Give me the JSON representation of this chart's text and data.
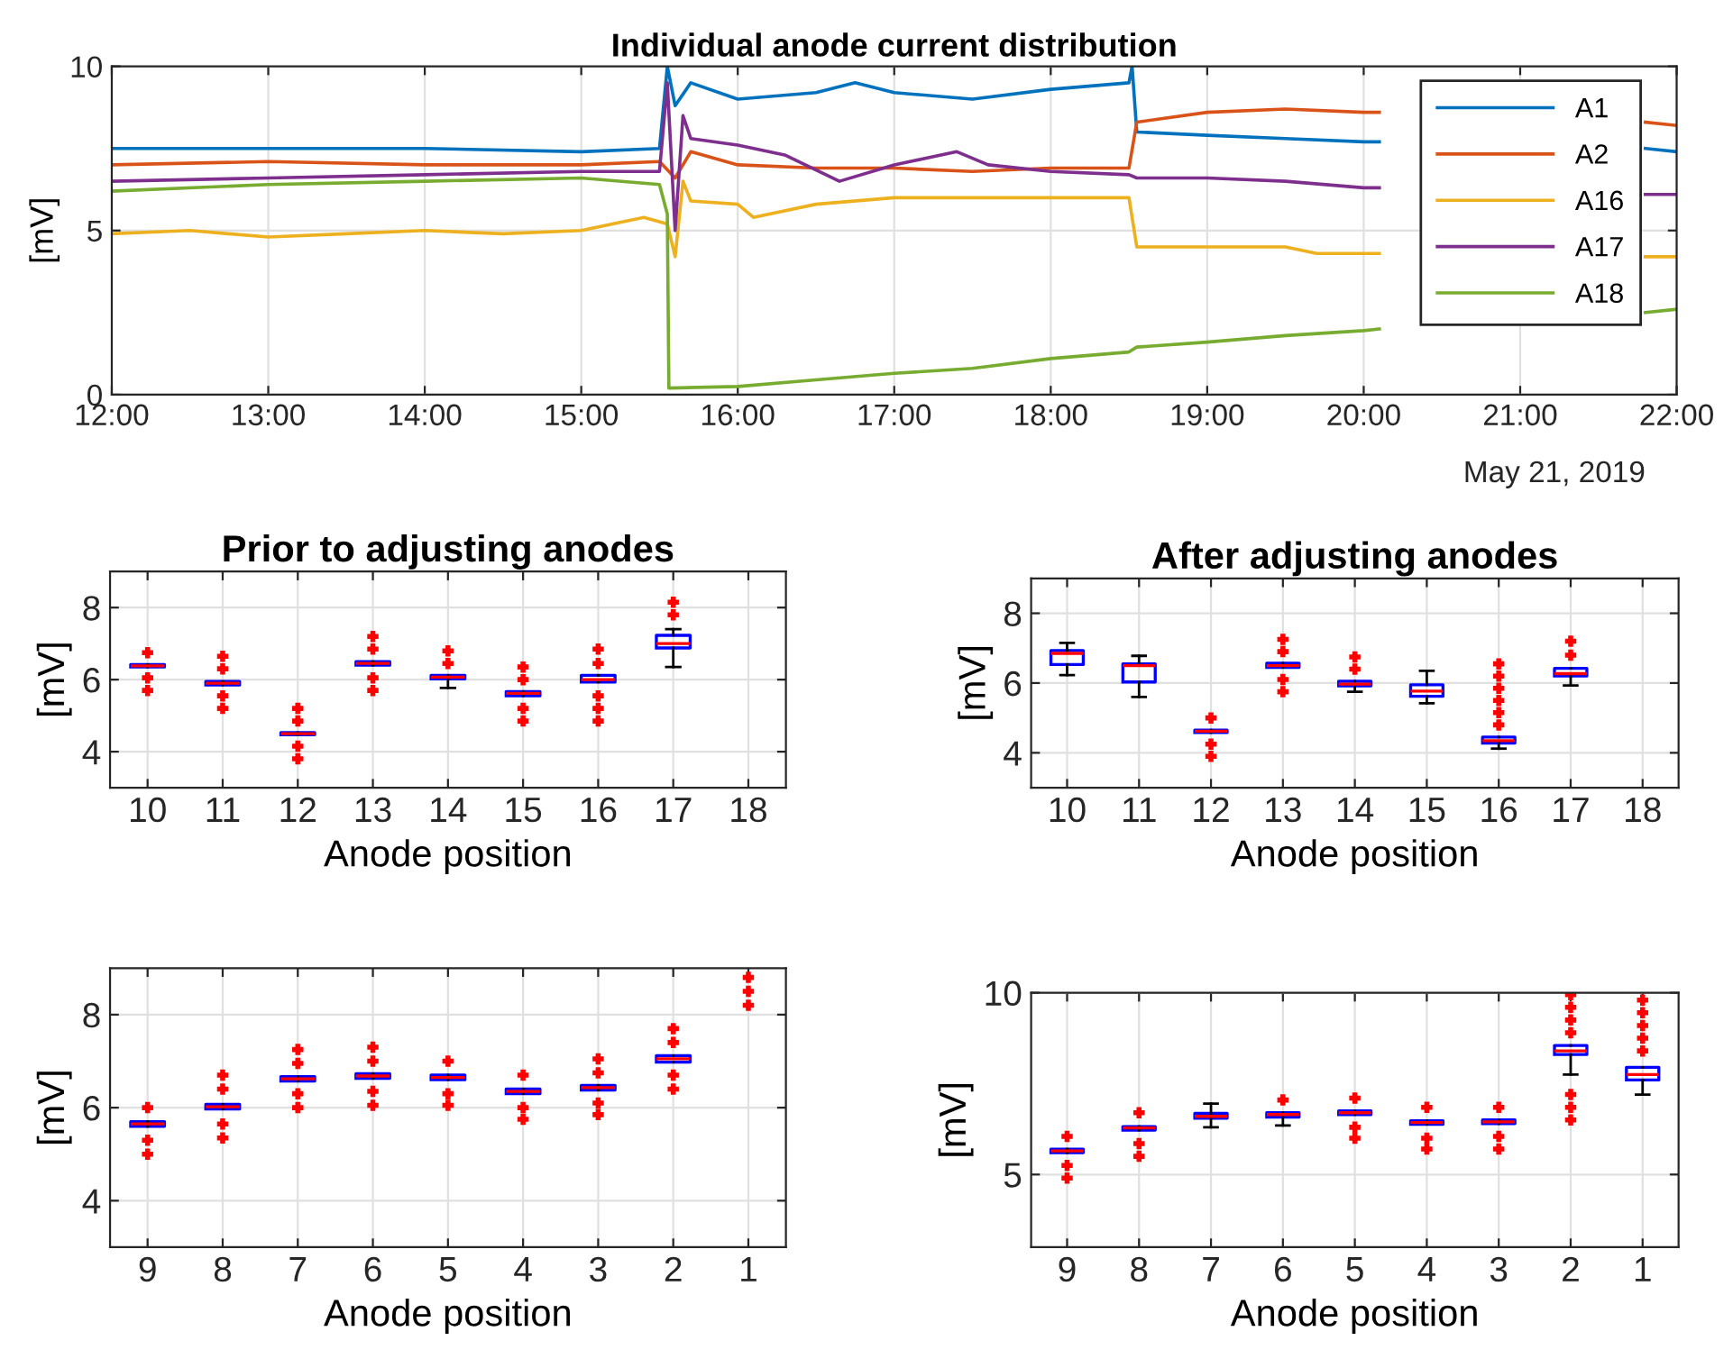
{
  "chart_data": [
    {
      "type": "line",
      "title": "Individual anode current distribution",
      "ylabel": "[mV]",
      "annotations": [
        "May 21, 2019"
      ],
      "xlim": [
        12,
        22
      ],
      "xticks": [
        {
          "value": 12,
          "label": "12:00"
        },
        {
          "value": 13,
          "label": "13:00"
        },
        {
          "value": 14,
          "label": "14:00"
        },
        {
          "value": 15,
          "label": "15:00"
        },
        {
          "value": 16,
          "label": "16:00"
        },
        {
          "value": 17,
          "label": "17:00"
        },
        {
          "value": 18,
          "label": "18:00"
        },
        {
          "value": 19,
          "label": "19:00"
        },
        {
          "value": 20,
          "label": "20:00"
        },
        {
          "value": 21,
          "label": "21:00"
        },
        {
          "value": 22,
          "label": "22:00"
        }
      ],
      "ylim": [
        0,
        10
      ],
      "yticks": [
        0,
        5,
        10
      ],
      "grid": true,
      "legend": "top right",
      "series": [
        {
          "name": "A1",
          "color": "#0072bd",
          "x": [
            12,
            13,
            14,
            15,
            15.5,
            15.55,
            15.6,
            15.7,
            16,
            16.5,
            16.75,
            17,
            17.5,
            18,
            18.5,
            18.52,
            18.55,
            19,
            19.5,
            20,
            20.1,
            21,
            21.8,
            22
          ],
          "values": [
            7.5,
            7.5,
            7.5,
            7.4,
            7.5,
            10,
            8.8,
            9.5,
            9.0,
            9.2,
            9.5,
            9.2,
            9.0,
            9.3,
            9.5,
            10,
            8.0,
            7.9,
            7.8,
            7.7,
            7.7,
            null,
            7.5,
            7.4
          ]
        },
        {
          "name": "A2",
          "color": "#d95319",
          "x": [
            12,
            13,
            14,
            15,
            15.5,
            15.6,
            15.7,
            16,
            16.5,
            17,
            17.5,
            18,
            18.5,
            18.55,
            19,
            19.5,
            20,
            20.1,
            21,
            21.8,
            22
          ],
          "values": [
            7.0,
            7.1,
            7.0,
            7.0,
            7.1,
            6.6,
            7.4,
            7.0,
            6.9,
            6.9,
            6.8,
            6.9,
            6.9,
            8.3,
            8.6,
            8.7,
            8.6,
            8.6,
            null,
            8.3,
            8.2
          ]
        },
        {
          "name": "A16",
          "color": "#edb120",
          "x": [
            12,
            12.5,
            13,
            13.5,
            14,
            14.5,
            15,
            15.4,
            15.55,
            15.6,
            15.65,
            15.7,
            16,
            16.1,
            16.5,
            17,
            17.5,
            18,
            18.5,
            18.55,
            19,
            19.5,
            19.7,
            20,
            20.1,
            21,
            21.8,
            22
          ],
          "values": [
            4.9,
            5.0,
            4.8,
            4.9,
            5.0,
            4.9,
            5.0,
            5.4,
            5.2,
            4.2,
            6.5,
            5.9,
            5.8,
            5.4,
            5.8,
            6.0,
            6.0,
            6.0,
            6.0,
            4.5,
            4.5,
            4.5,
            4.3,
            4.3,
            4.3,
            null,
            4.2,
            4.2
          ]
        },
        {
          "name": "A17",
          "color": "#7e2f8e",
          "x": [
            12,
            13,
            14,
            15,
            15.5,
            15.55,
            15.6,
            15.65,
            15.7,
            16,
            16.3,
            16.65,
            17,
            17.4,
            17.6,
            18,
            18.5,
            18.55,
            19,
            19.5,
            20,
            20.1,
            21,
            21.8,
            22
          ],
          "values": [
            6.5,
            6.6,
            6.7,
            6.8,
            6.8,
            9.5,
            5.0,
            8.5,
            7.8,
            7.6,
            7.3,
            6.5,
            7.0,
            7.4,
            7.0,
            6.8,
            6.7,
            6.6,
            6.6,
            6.5,
            6.3,
            6.3,
            null,
            6.1,
            6.1
          ]
        },
        {
          "name": "A18",
          "color": "#77ac30",
          "x": [
            12,
            13,
            14,
            15,
            15.5,
            15.55,
            15.56,
            16,
            16.5,
            17,
            17.5,
            18,
            18.5,
            18.55,
            19,
            19.5,
            20,
            20.1,
            21,
            21.8,
            22
          ],
          "values": [
            6.2,
            6.4,
            6.5,
            6.6,
            6.4,
            5.5,
            0.2,
            0.25,
            0.45,
            0.65,
            0.8,
            1.1,
            1.3,
            1.45,
            1.6,
            1.8,
            1.95,
            2.0,
            null,
            2.5,
            2.6
          ]
        }
      ]
    },
    {
      "type": "box",
      "title": "Prior to adjusting anodes",
      "xlabel": "Anode position",
      "ylabel": "[mV]",
      "ylim": [
        3,
        9
      ],
      "yticks": [
        4,
        6,
        8
      ],
      "grid": true,
      "categories": [
        "10",
        "11",
        "12",
        "13",
        "14",
        "15",
        "16",
        "17",
        "18"
      ],
      "series": [
        {
          "color": "#0000ff",
          "boxes": [
            {
              "low": 6.35,
              "q1": 6.35,
              "median": 6.38,
              "q3": 6.42,
              "high": 6.42,
              "outliers": [
                5.7,
                6.05,
                6.75
              ]
            },
            {
              "low": 5.85,
              "q1": 5.85,
              "median": 5.9,
              "q3": 5.95,
              "high": 5.95,
              "outliers": [
                5.2,
                5.55,
                6.3,
                6.65
              ]
            },
            {
              "low": 4.47,
              "q1": 4.47,
              "median": 4.5,
              "q3": 4.53,
              "high": 4.53,
              "outliers": [
                3.8,
                4.15,
                4.85,
                5.2
              ]
            },
            {
              "low": 6.4,
              "q1": 6.4,
              "median": 6.45,
              "q3": 6.5,
              "high": 6.5,
              "outliers": [
                5.7,
                6.05,
                6.85,
                7.2
              ]
            },
            {
              "low": 5.77,
              "q1": 6.02,
              "median": 6.07,
              "q3": 6.12,
              "high": 6.12,
              "outliers": [
                6.45,
                6.8
              ]
            },
            {
              "low": 5.55,
              "q1": 5.55,
              "median": 5.62,
              "q3": 5.67,
              "high": 5.67,
              "outliers": [
                4.85,
                5.2,
                6.0,
                6.35
              ]
            },
            {
              "low": 5.93,
              "q1": 5.93,
              "median": 6.0,
              "q3": 6.12,
              "high": 6.12,
              "outliers": [
                4.85,
                5.2,
                5.55,
                6.45,
                6.85
              ]
            },
            {
              "low": 6.35,
              "q1": 6.88,
              "median": 7.0,
              "q3": 7.23,
              "high": 7.4,
              "outliers": [
                7.8,
                8.15
              ]
            },
            null
          ]
        }
      ]
    },
    {
      "type": "box",
      "title": "After adjusting anodes",
      "xlabel": "Anode position",
      "ylabel": "[mV]",
      "ylim": [
        3,
        9
      ],
      "yticks": [
        4,
        6,
        8
      ],
      "grid": true,
      "categories": [
        "10",
        "11",
        "12",
        "13",
        "14",
        "15",
        "16",
        "17",
        "18"
      ],
      "series": [
        {
          "color": "#0000ff",
          "boxes": [
            {
              "low": 6.23,
              "q1": 6.53,
              "median": 6.85,
              "q3": 6.93,
              "high": 7.15
            },
            {
              "low": 5.6,
              "q1": 6.03,
              "median": 6.5,
              "q3": 6.55,
              "high": 6.78
            },
            {
              "low": 4.58,
              "q1": 4.58,
              "median": 4.62,
              "q3": 4.65,
              "high": 4.65,
              "outliers": [
                3.9,
                4.25,
                5.0
              ]
            },
            {
              "low": 6.45,
              "q1": 6.45,
              "median": 6.5,
              "q3": 6.57,
              "high": 6.57,
              "outliers": [
                5.75,
                6.1,
                6.9,
                7.25
              ]
            },
            {
              "low": 5.75,
              "q1": 5.92,
              "median": 5.97,
              "q3": 6.05,
              "high": 6.05,
              "outliers": [
                6.4,
                6.75
              ]
            },
            {
              "low": 5.42,
              "q1": 5.62,
              "median": 5.77,
              "q3": 5.95,
              "high": 6.35
            },
            {
              "low": 4.12,
              "q1": 4.28,
              "median": 4.35,
              "q3": 4.45,
              "high": 4.45,
              "outliers": [
                4.8,
                5.15,
                5.5,
                5.85,
                6.2,
                6.55
              ]
            },
            {
              "low": 5.93,
              "q1": 6.2,
              "median": 6.27,
              "q3": 6.42,
              "high": 6.42,
              "outliers": [
                6.8,
                7.2
              ]
            },
            null
          ]
        }
      ]
    },
    {
      "type": "box",
      "xlabel": "Anode position",
      "ylabel": "[mV]",
      "ylim": [
        3,
        9
      ],
      "yticks": [
        4,
        6,
        8
      ],
      "grid": true,
      "categories": [
        "9",
        "8",
        "7",
        "6",
        "5",
        "4",
        "3",
        "2",
        "1"
      ],
      "series": [
        {
          "color": "#0000ff",
          "boxes": [
            {
              "low": 5.6,
              "q1": 5.6,
              "median": 5.65,
              "q3": 5.7,
              "high": 5.7,
              "outliers": [
                5.0,
                5.3,
                6.0
              ]
            },
            {
              "low": 5.97,
              "q1": 5.97,
              "median": 6.02,
              "q3": 6.07,
              "high": 6.07,
              "outliers": [
                5.35,
                5.65,
                6.4,
                6.7
              ]
            },
            {
              "low": 6.57,
              "q1": 6.57,
              "median": 6.62,
              "q3": 6.67,
              "high": 6.67,
              "outliers": [
                6.0,
                6.3,
                6.95,
                7.25
              ]
            },
            {
              "low": 6.63,
              "q1": 6.63,
              "median": 6.68,
              "q3": 6.73,
              "high": 6.73,
              "outliers": [
                6.05,
                6.35,
                7.0,
                7.3
              ]
            },
            {
              "low": 6.6,
              "q1": 6.6,
              "median": 6.65,
              "q3": 6.7,
              "high": 6.7,
              "outliers": [
                6.05,
                6.3,
                7.0
              ]
            },
            {
              "low": 6.3,
              "q1": 6.3,
              "median": 6.35,
              "q3": 6.4,
              "high": 6.4,
              "outliers": [
                5.75,
                6.0,
                6.7
              ]
            },
            {
              "low": 6.38,
              "q1": 6.38,
              "median": 6.43,
              "q3": 6.48,
              "high": 6.48,
              "outliers": [
                5.85,
                6.1,
                6.75,
                7.05
              ]
            },
            {
              "low": 6.98,
              "q1": 6.98,
              "median": 7.05,
              "q3": 7.12,
              "high": 7.12,
              "outliers": [
                6.4,
                6.7,
                7.4,
                7.7
              ]
            },
            null
          ]
        },
        {
          "type": "scatter",
          "color": "#ff0000",
          "x": [
            "1",
            "1",
            "1"
          ],
          "values": [
            8.2,
            8.5,
            8.8
          ]
        }
      ]
    },
    {
      "type": "box",
      "xlabel": "Anode position",
      "ylabel": "[mV]",
      "ylim": [
        3,
        10
      ],
      "yticks": [
        5,
        10
      ],
      "grid": true,
      "categories": [
        "9",
        "8",
        "7",
        "6",
        "5",
        "4",
        "3",
        "2",
        "1"
      ],
      "series": [
        {
          "color": "#0000ff",
          "boxes": [
            {
              "low": 5.6,
              "q1": 5.6,
              "median": 5.65,
              "q3": 5.7,
              "high": 5.7,
              "outliers": [
                4.9,
                5.25,
                6.05
              ]
            },
            {
              "low": 6.22,
              "q1": 6.22,
              "median": 6.28,
              "q3": 6.32,
              "high": 6.32,
              "outliers": [
                5.5,
                5.85,
                6.7
              ]
            },
            {
              "low": 6.3,
              "q1": 6.55,
              "median": 6.6,
              "q3": 6.68,
              "high": 6.95
            },
            {
              "low": 6.35,
              "q1": 6.58,
              "median": 6.65,
              "q3": 6.7,
              "high": 6.7,
              "outliers": [
                7.05
              ]
            },
            {
              "low": 6.65,
              "q1": 6.65,
              "median": 6.7,
              "q3": 6.75,
              "high": 6.75,
              "outliers": [
                6.0,
                6.3,
                7.1
              ]
            },
            {
              "low": 6.38,
              "q1": 6.38,
              "median": 6.43,
              "q3": 6.48,
              "high": 6.48,
              "outliers": [
                5.7,
                6.0,
                6.85
              ]
            },
            {
              "low": 6.4,
              "q1": 6.4,
              "median": 6.45,
              "q3": 6.5,
              "high": 6.5,
              "outliers": [
                5.7,
                6.05,
                6.85
              ]
            },
            {
              "low": 7.75,
              "q1": 8.3,
              "median": 8.4,
              "q3": 8.55,
              "high": 8.55,
              "outliers": [
                6.5,
                6.85,
                7.2,
                8.9,
                9.25,
                9.6,
                9.95
              ]
            },
            {
              "low": 7.2,
              "q1": 7.6,
              "median": 7.75,
              "q3": 7.95,
              "high": 7.95,
              "outliers": [
                8.4,
                8.75,
                9.1,
                9.45,
                9.8
              ]
            }
          ]
        }
      ]
    }
  ]
}
